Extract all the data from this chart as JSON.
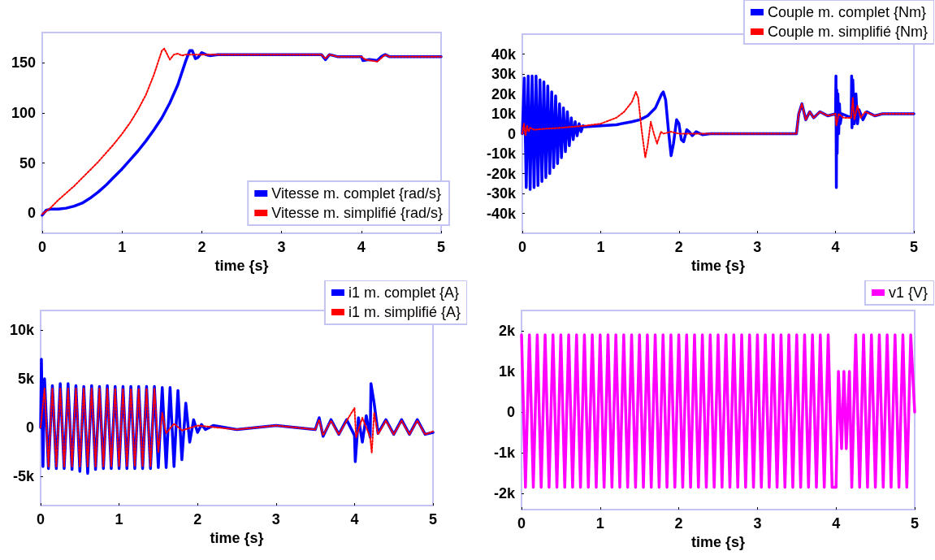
{
  "chart_data": [
    {
      "type": "line",
      "xlabel": "time {s}",
      "xlim": [
        0,
        5
      ],
      "xticks": [
        0,
        1,
        2,
        3,
        4,
        5
      ],
      "ylim": [
        -20,
        180
      ],
      "yticks": [
        0,
        50,
        100,
        150
      ],
      "legend": "bottom right",
      "series": [
        {
          "name": "Vitesse m. complet {rad/s}",
          "color": "#0000ff",
          "line_style": "solid",
          "x": [
            0,
            0.05,
            0.1,
            0.2,
            0.3,
            0.4,
            0.5,
            0.6,
            0.7,
            0.8,
            0.9,
            1.0,
            1.1,
            1.2,
            1.3,
            1.4,
            1.5,
            1.6,
            1.7,
            1.75,
            1.8,
            1.85,
            1.88,
            1.92,
            1.95,
            2.0,
            2.05,
            2.1,
            2.2,
            3.5,
            3.55,
            3.6,
            3.7,
            4.0,
            4.02,
            4.1,
            4.2,
            4.25,
            4.3,
            4.35,
            5
          ],
          "values": [
            -2,
            3,
            4,
            4,
            5,
            7,
            10,
            15,
            21,
            28,
            36,
            44,
            53,
            62,
            72,
            83,
            95,
            110,
            128,
            140,
            152,
            162,
            162,
            154,
            155,
            160,
            158,
            157,
            158,
            158,
            153,
            158,
            156,
            156,
            152,
            153,
            152,
            156,
            158,
            156,
            156
          ]
        },
        {
          "name": "Vitesse m. simplifié {rad/s}",
          "color": "#ff0000",
          "line_style": "dotted",
          "x": [
            0,
            0.1,
            0.2,
            0.3,
            0.4,
            0.5,
            0.6,
            0.7,
            0.8,
            0.9,
            1.0,
            1.1,
            1.2,
            1.3,
            1.4,
            1.45,
            1.5,
            1.53,
            1.6,
            1.65,
            1.7,
            1.75,
            1.8,
            2.0,
            3.5,
            3.55,
            3.6,
            3.7,
            4.0,
            4.05,
            4.2,
            4.3,
            4.35,
            5
          ],
          "values": [
            -1,
            5,
            13,
            20,
            27,
            35,
            43,
            51,
            60,
            69,
            79,
            90,
            103,
            118,
            138,
            150,
            162,
            164,
            153,
            158,
            159,
            157,
            158,
            158,
            158,
            154,
            158,
            156,
            156,
            153,
            151,
            158,
            156,
            156
          ]
        }
      ]
    },
    {
      "type": "line",
      "xlabel": "time {s}",
      "xlim": [
        0,
        5
      ],
      "xticks": [
        0,
        1,
        2,
        3,
        4,
        5
      ],
      "ylim": [
        -50000,
        50000
      ],
      "yticks": [
        {
          "value": -40000,
          "label": "-40k"
        },
        {
          "value": -30000,
          "label": "-30k"
        },
        {
          "value": -20000,
          "label": "-20k"
        },
        {
          "value": -10000,
          "label": "-10k"
        },
        0,
        {
          "value": 10000,
          "label": "10k"
        },
        {
          "value": 20000,
          "label": "20k"
        },
        {
          "value": 30000,
          "label": "30k"
        },
        {
          "value": 40000,
          "label": "40k"
        }
      ],
      "legend": "top right",
      "series": [
        {
          "name": "Couple m. complet {Nm}",
          "color": "#0000ff",
          "line_style": "solid",
          "x": [
            0,
            0.025,
            0.05,
            0.075,
            0.1,
            0.125,
            0.15,
            0.175,
            0.2,
            0.225,
            0.25,
            0.275,
            0.3,
            0.325,
            0.35,
            0.375,
            0.4,
            0.425,
            0.45,
            0.475,
            0.5,
            0.525,
            0.55,
            0.575,
            0.6,
            0.625,
            0.65,
            0.675,
            0.7,
            0.725,
            0.75,
            0.775,
            0.8,
            1.0,
            1.2,
            1.4,
            1.5,
            1.6,
            1.7,
            1.78,
            1.8,
            1.83,
            1.87,
            1.9,
            1.93,
            1.97,
            2.0,
            2.03,
            2.06,
            2.1,
            2.13,
            2.17,
            2.22,
            2.3,
            2.4,
            3.5,
            3.53,
            3.57,
            3.62,
            3.67,
            3.72,
            3.8,
            3.9,
            4.0,
            4.005,
            4.01,
            4.015,
            4.02,
            4.03,
            4.04,
            4.05,
            4.06,
            4.08,
            4.2,
            4.205,
            4.21,
            4.22,
            4.24,
            4.26,
            4.28,
            4.3,
            4.35,
            4.4,
            4.5,
            4.6,
            5
          ],
          "values": [
            0,
            28000,
            -27000,
            29000,
            -28000,
            29000,
            -27000,
            29000,
            -26000,
            27000,
            -24000,
            26000,
            -22000,
            24000,
            -20000,
            21000,
            -17000,
            19000,
            -15000,
            15000,
            -12000,
            13000,
            -9000,
            11000,
            -6000,
            8000,
            -3000,
            6000,
            -1000,
            5000,
            1000,
            4000,
            3500,
            4000,
            4500,
            6000,
            7000,
            9000,
            13000,
            20000,
            21000,
            17000,
            0,
            -11000,
            -5000,
            7000,
            5000,
            -3000,
            -4000,
            2000,
            1000,
            -1000,
            1000,
            -500,
            0,
            0,
            10000,
            15000,
            7000,
            11000,
            8000,
            11000,
            9000,
            10000,
            29000,
            -27000,
            22000,
            -10000,
            20000,
            0,
            15000,
            5000,
            10000,
            8000,
            29000,
            3000,
            27000,
            5000,
            20000,
            5000,
            12000,
            7000,
            11000,
            9000,
            10000,
            10000
          ]
        },
        {
          "name": "Couple m. simplifié {Nm}",
          "color": "#ff0000",
          "line_style": "dotted",
          "x": [
            0,
            0.02,
            0.04,
            0.06,
            0.08,
            0.1,
            0.15,
            0.3,
            0.5,
            0.8,
            1.0,
            1.1,
            1.2,
            1.3,
            1.4,
            1.45,
            1.48,
            1.52,
            1.57,
            1.6,
            1.64,
            1.68,
            1.72,
            1.77,
            1.8,
            1.9,
            2.0,
            3.5,
            3.53,
            3.57,
            3.62,
            3.67,
            3.72,
            3.8,
            3.9,
            4.0,
            4.01,
            4.04,
            4.1,
            4.2,
            4.22,
            4.24,
            4.28,
            4.32,
            4.38,
            4.5,
            4.6,
            5
          ],
          "values": [
            0,
            5000,
            -1000,
            4000,
            1000,
            3000,
            2000,
            2500,
            3000,
            4000,
            5000,
            6500,
            8000,
            11000,
            16000,
            21000,
            18000,
            3000,
            -12000,
            -6000,
            6000,
            0,
            -5000,
            1000,
            0,
            1000,
            0,
            0,
            10000,
            15000,
            7000,
            11000,
            8000,
            11000,
            9000,
            10000,
            4000,
            10000,
            8000,
            8000,
            18000,
            7000,
            14000,
            8000,
            11000,
            9000,
            10000,
            10000
          ]
        }
      ]
    },
    {
      "type": "line",
      "xlabel": "time {s}",
      "xlim": [
        0,
        5
      ],
      "xticks": [
        0,
        1,
        2,
        3,
        4,
        5
      ],
      "ylim": [
        -8000,
        12000
      ],
      "yticks": [
        {
          "value": -5000,
          "label": "-5k"
        },
        0,
        {
          "value": 5000,
          "label": "5k"
        },
        {
          "value": 10000,
          "label": "10k"
        }
      ],
      "legend": "top right",
      "series": [
        {
          "name": "i1 m. complet {A}",
          "color": "#0000ff",
          "line_style": "solid",
          "x": [
            0,
            0.01,
            0.03,
            0.05,
            0.1,
            0.15,
            0.2,
            0.25,
            0.3,
            0.35,
            0.4,
            0.45,
            0.5,
            0.55,
            0.6,
            0.65,
            0.7,
            0.75,
            0.8,
            0.85,
            0.9,
            0.95,
            1.0,
            1.05,
            1.1,
            1.15,
            1.2,
            1.25,
            1.3,
            1.35,
            1.4,
            1.45,
            1.5,
            1.55,
            1.6,
            1.65,
            1.7,
            1.75,
            1.8,
            1.85,
            1.9,
            1.95,
            2.0,
            2.05,
            2.1,
            2.2,
            2.5,
            3.0,
            3.5,
            3.55,
            3.6,
            3.7,
            3.8,
            3.9,
            4.0,
            4.01,
            4.05,
            4.1,
            4.15,
            4.2,
            4.21,
            4.25,
            4.3,
            4.4,
            4.5,
            4.6,
            4.7,
            4.8,
            4.9,
            5.0
          ],
          "values": [
            0,
            7000,
            -4000,
            5000,
            -4200,
            4300,
            -4200,
            4500,
            -4200,
            4500,
            -4300,
            4300,
            -4500,
            4200,
            -4700,
            4300,
            -4300,
            4200,
            -4200,
            4300,
            -4200,
            4200,
            -4200,
            4200,
            -4200,
            4200,
            -4200,
            4200,
            -4200,
            4200,
            -4200,
            4200,
            -4100,
            4100,
            -4100,
            4100,
            -4000,
            3800,
            -3300,
            2500,
            -1500,
            800,
            -500,
            300,
            -200,
            200,
            -200,
            200,
            -200,
            1000,
            -900,
            800,
            -700,
            800,
            -800,
            -3500,
            1000,
            -1500,
            1200,
            -1000,
            4500,
            2500,
            -600,
            800,
            -700,
            800,
            -700,
            800,
            -700,
            -500
          ]
        },
        {
          "name": "i1 m. simplifié {A}",
          "color": "#ff0000",
          "line_style": "dotted",
          "x": [
            0,
            0.05,
            0.1,
            0.15,
            0.2,
            0.25,
            0.3,
            0.35,
            0.4,
            0.45,
            0.5,
            0.55,
            0.6,
            0.65,
            0.7,
            0.75,
            0.8,
            0.85,
            0.9,
            0.95,
            1.0,
            1.05,
            1.1,
            1.15,
            1.2,
            1.25,
            1.3,
            1.35,
            1.4,
            1.45,
            1.5,
            1.55,
            1.6,
            1.7,
            1.8,
            2.0,
            2.5,
            3.0,
            3.5,
            3.55,
            3.6,
            3.7,
            3.8,
            3.9,
            4.0,
            4.02,
            4.1,
            4.2,
            4.22,
            4.25,
            4.3,
            4.4,
            4.5,
            4.6,
            4.7,
            4.8,
            4.9,
            5.0
          ],
          "values": [
            0,
            4000,
            -4000,
            4000,
            -4000,
            4000,
            -4000,
            4000,
            -4000,
            4000,
            -4000,
            4000,
            -4000,
            4000,
            -4000,
            4000,
            -4000,
            4000,
            -4000,
            4000,
            -4000,
            4000,
            -4000,
            4000,
            -4000,
            4000,
            -4000,
            4000,
            -4000,
            4000,
            -2500,
            1500,
            -600,
            400,
            -300,
            200,
            -200,
            200,
            -200,
            800,
            -800,
            700,
            -700,
            700,
            2000,
            -1000,
            1000,
            -1000,
            -2600,
            1500,
            -700,
            700,
            -700,
            700,
            -700,
            700,
            -700,
            -400
          ]
        }
      ]
    },
    {
      "type": "line",
      "xlabel": "time {s}",
      "xlim": [
        0,
        5
      ],
      "xticks": [
        0,
        1,
        2,
        3,
        4,
        5
      ],
      "ylim": [
        -2400,
        2500
      ],
      "yticks": [
        {
          "value": -2000,
          "label": "-2k"
        },
        {
          "value": -1000,
          "label": "-1k"
        },
        0,
        {
          "value": 1000,
          "label": "1k"
        },
        {
          "value": 2000,
          "label": "2k"
        }
      ],
      "legend": "top right",
      "series": [
        {
          "name": "v1 {V}",
          "color": "#ff00ff",
          "line_style": "solid",
          "x": [
            0,
            0.05,
            0.1,
            0.15,
            0.2,
            0.25,
            0.3,
            0.35,
            0.4,
            0.45,
            0.5,
            0.55,
            0.6,
            0.65,
            0.7,
            0.75,
            0.8,
            0.85,
            0.9,
            0.95,
            1.0,
            1.05,
            1.1,
            1.15,
            1.2,
            1.25,
            1.3,
            1.35,
            1.4,
            1.45,
            1.5,
            1.55,
            1.6,
            1.65,
            1.7,
            1.75,
            1.8,
            1.85,
            1.9,
            1.95,
            2.0,
            2.05,
            2.1,
            2.15,
            2.2,
            2.25,
            2.3,
            2.35,
            2.4,
            2.45,
            2.5,
            2.55,
            2.6,
            2.65,
            2.7,
            2.75,
            2.8,
            2.85,
            2.9,
            2.95,
            3.0,
            3.05,
            3.1,
            3.15,
            3.2,
            3.25,
            3.3,
            3.35,
            3.4,
            3.45,
            3.5,
            3.55,
            3.6,
            3.65,
            3.7,
            3.75,
            3.8,
            3.85,
            3.9,
            3.95,
            4.0,
            4.03,
            4.07,
            4.1,
            4.13,
            4.17,
            4.2,
            4.25,
            4.3,
            4.35,
            4.4,
            4.45,
            4.5,
            4.55,
            4.6,
            4.65,
            4.7,
            4.75,
            4.8,
            4.85,
            4.9,
            4.95,
            5.0
          ],
          "values": [
            1900,
            -1850,
            1900,
            -1850,
            1900,
            -1850,
            1900,
            -1850,
            1900,
            -1850,
            1900,
            -1850,
            1900,
            -1850,
            1900,
            -1850,
            1900,
            -1850,
            1900,
            -1850,
            1900,
            -1850,
            1900,
            -1850,
            1900,
            -1850,
            1900,
            -1850,
            1900,
            -1850,
            1900,
            -1850,
            1900,
            -1850,
            1900,
            -1850,
            1900,
            -1850,
            1900,
            -1850,
            1900,
            -1850,
            1900,
            -1850,
            1900,
            -1850,
            1900,
            -1850,
            1900,
            -1850,
            1900,
            -1850,
            1900,
            -1850,
            1900,
            -1850,
            1900,
            -1850,
            1900,
            -1850,
            1900,
            -1850,
            1900,
            -1850,
            1900,
            -1850,
            1900,
            -1850,
            1900,
            -1850,
            1900,
            -1850,
            1900,
            -1850,
            1900,
            -1850,
            1900,
            -1850,
            1900,
            -1850,
            -1850,
            1000,
            -900,
            1000,
            -900,
            1000,
            -1850,
            1900,
            -1850,
            1900,
            -1850,
            1900,
            -1850,
            1900,
            -1850,
            1900,
            -1850,
            1900,
            -1850,
            1900,
            -1850,
            1900,
            0
          ]
        }
      ]
    }
  ]
}
